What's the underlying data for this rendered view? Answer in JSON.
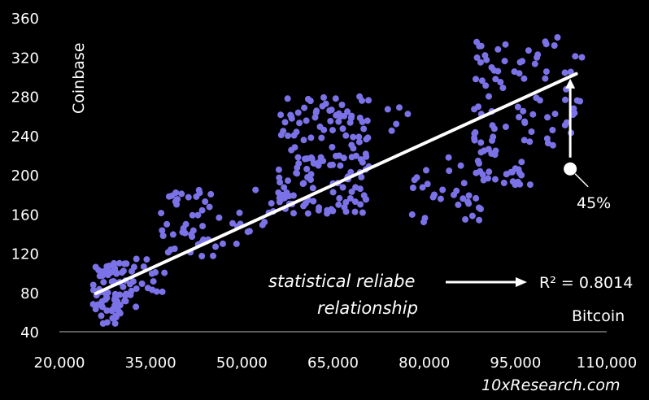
{
  "chart_data": {
    "type": "scatter",
    "xlabel": "Bitcoin",
    "ylabel": "Coinbase",
    "xlim": [
      20000,
      110000
    ],
    "ylim": [
      40,
      360
    ],
    "x_ticks": [
      "20,000",
      "35,000",
      "50,000",
      "65,000",
      "80,000",
      "95,000",
      "110,000"
    ],
    "y_ticks": [
      "360",
      "320",
      "280",
      "240",
      "200",
      "160",
      "120",
      "80",
      "40"
    ],
    "grid": false,
    "point_color": "#7B72E8",
    "line_color": "#FFFFFF",
    "trendline": {
      "x": [
        26000,
        105000
      ],
      "y": [
        79,
        303
      ]
    },
    "r_squared_label": "R² = 0.8014",
    "annotations": {
      "note_line1": "statistical reliabe",
      "note_line2": "relationship",
      "gap_label": "45%",
      "gap_point": {
        "x": 104000,
        "y": 206
      },
      "gap_target_y": 298
    },
    "clusters": [
      {
        "x": [
          25500,
          31000
        ],
        "y": [
          48,
          110
        ],
        "n": 70
      },
      {
        "x": [
          30000,
          37500
        ],
        "y": [
          65,
          115
        ],
        "n": 25
      },
      {
        "x": [
          36500,
          45500
        ],
        "y": [
          115,
          185
        ],
        "n": 40
      },
      {
        "x": [
          44000,
          53000
        ],
        "y": [
          125,
          165
        ],
        "n": 10
      },
      {
        "x": [
          52000,
          58000
        ],
        "y": [
          140,
          185
        ],
        "n": 10
      },
      {
        "x": [
          56000,
          71000
        ],
        "y": [
          160,
          280
        ],
        "n": 150
      },
      {
        "x": [
          71000,
          78000
        ],
        "y": [
          240,
          270
        ],
        "n": 5
      },
      {
        "x": [
          77000,
          90000
        ],
        "y": [
          150,
          220
        ],
        "n": 35
      },
      {
        "x": [
          89000,
          92000
        ],
        "y": [
          195,
          230
        ],
        "n": 10
      },
      {
        "x": [
          93000,
          98000
        ],
        "y": [
          185,
          215
        ],
        "n": 15
      },
      {
        "x": [
          88000,
          106000
        ],
        "y": [
          230,
          345
        ],
        "n": 80
      }
    ]
  },
  "source": "10xResearch.com"
}
